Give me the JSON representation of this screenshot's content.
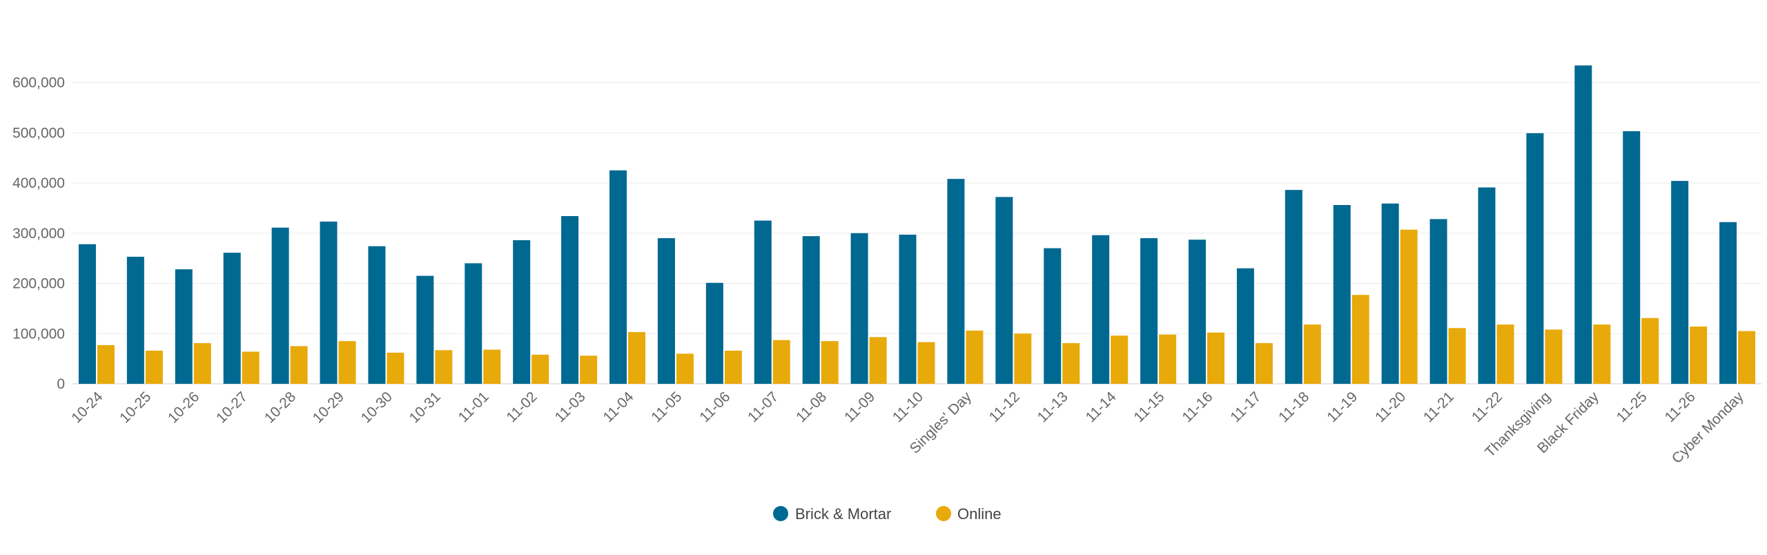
{
  "chart_data": {
    "type": "bar",
    "title": "",
    "xlabel": "",
    "ylabel": "",
    "ylim": [
      0,
      700000
    ],
    "yticks": [
      0,
      100000,
      200000,
      300000,
      400000,
      500000,
      600000
    ],
    "ytick_labels": [
      "0",
      "100,000",
      "200,000",
      "300,000",
      "400,000",
      "500,000",
      "600,000"
    ],
    "grid": true,
    "legend_position": "bottom-center",
    "categories": [
      "10-24",
      "10-25",
      "10-26",
      "10-27",
      "10-28",
      "10-29",
      "10-30",
      "10-31",
      "11-01",
      "11-02",
      "11-03",
      "11-04",
      "11-05",
      "11-06",
      "11-07",
      "11-08",
      "11-09",
      "11-10",
      "Singles' Day",
      "11-12",
      "11-13",
      "11-14",
      "11-15",
      "11-16",
      "11-17",
      "11-18",
      "11-19",
      "11-20",
      "11-21",
      "11-22",
      "Thanksgiving",
      "Black Friday",
      "11-25",
      "11-26",
      "Cyber Monday"
    ],
    "series": [
      {
        "name": "Brick & Mortar",
        "color": "#006991",
        "values": [
          278000,
          253000,
          228000,
          261000,
          311000,
          323000,
          274000,
          215000,
          240000,
          286000,
          334000,
          425000,
          290000,
          201000,
          325000,
          294000,
          300000,
          297000,
          408000,
          372000,
          270000,
          296000,
          290000,
          287000,
          230000,
          386000,
          356000,
          359000,
          328000,
          391000,
          499000,
          634000,
          503000,
          404000,
          322000
        ]
      },
      {
        "name": "Online",
        "color": "#E8A90A",
        "values": [
          77000,
          66000,
          81000,
          64000,
          75000,
          85000,
          62000,
          67000,
          68000,
          58000,
          56000,
          103000,
          60000,
          66000,
          87000,
          85000,
          93000,
          83000,
          106000,
          100000,
          81000,
          96000,
          98000,
          102000,
          81000,
          118000,
          177000,
          307000,
          111000,
          118000,
          108000,
          118000,
          131000,
          114000,
          105000
        ]
      }
    ]
  }
}
